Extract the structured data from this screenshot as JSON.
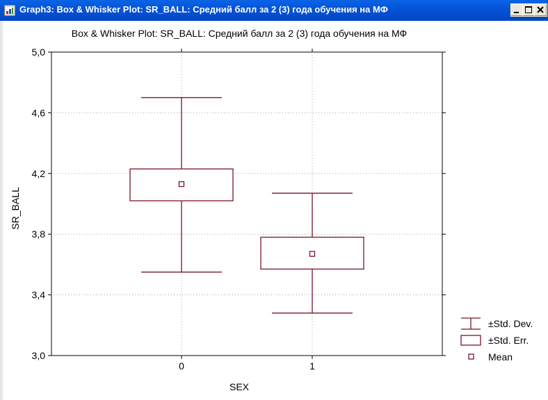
{
  "window": {
    "title": "Graph3: Box & Whisker Plot: SR_BALL: Средний балл за 2 (3) года обучения на МФ",
    "buttons": [
      "minimize",
      "maximize",
      "close"
    ]
  },
  "colors": {
    "box": "#7a1424",
    "grid": "#a0a0a0",
    "titlebar": "#0554d8"
  },
  "chart_data": {
    "type": "box",
    "title": "Box & Whisker Plot: SR_BALL: Средний балл за 2 (3) года обучения на МФ",
    "xlabel": "SEX",
    "ylabel": "SR_BALL",
    "categories": [
      "0",
      "1"
    ],
    "ylim": [
      3.0,
      5.0
    ],
    "yticks": [
      "3,0",
      "3,4",
      "3,8",
      "4,2",
      "4,6",
      "5,0"
    ],
    "ytick_values": [
      3.0,
      3.4,
      3.8,
      4.2,
      4.6,
      5.0
    ],
    "grid": true,
    "legend_position": "bottom-right",
    "groups": [
      {
        "category": "0",
        "mean": 4.13,
        "se_low": 4.02,
        "se_high": 4.23,
        "sd_low": 3.55,
        "sd_high": 4.7
      },
      {
        "category": "1",
        "mean": 3.67,
        "se_low": 3.57,
        "se_high": 3.78,
        "sd_low": 3.28,
        "sd_high": 4.07
      }
    ],
    "legend": [
      {
        "key": "whisker",
        "label": "±Std. Dev."
      },
      {
        "key": "box",
        "label": "±Std. Err."
      },
      {
        "key": "mean",
        "label": "Mean"
      }
    ]
  }
}
